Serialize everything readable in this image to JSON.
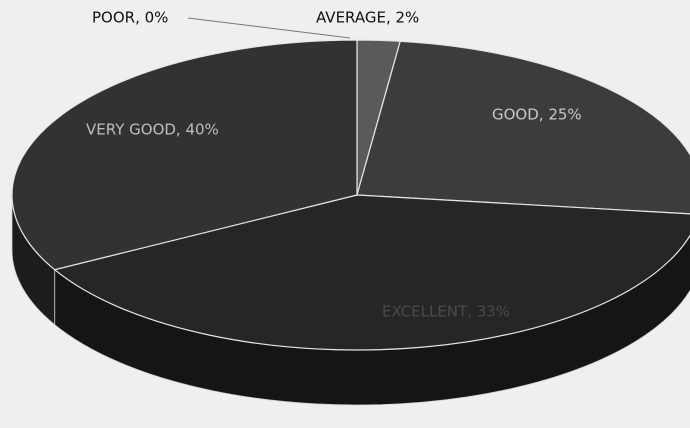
{
  "chart_data": {
    "type": "pie3d",
    "categories": [
      "POOR",
      "AVERAGE",
      "GOOD",
      "VERY GOOD",
      "EXCELLENT"
    ],
    "values": [
      0,
      2,
      25,
      40,
      33
    ],
    "value_labels": [
      "POOR, 0%",
      "AVERAGE, 2%",
      "GOOD, 25%",
      "VERY GOOD, 40%",
      "EXCELLENT, 33%"
    ],
    "colors": [
      "#6a6a6a",
      "#5a5a5a",
      "#3c3c3c",
      "#262626",
      "#323232"
    ]
  }
}
